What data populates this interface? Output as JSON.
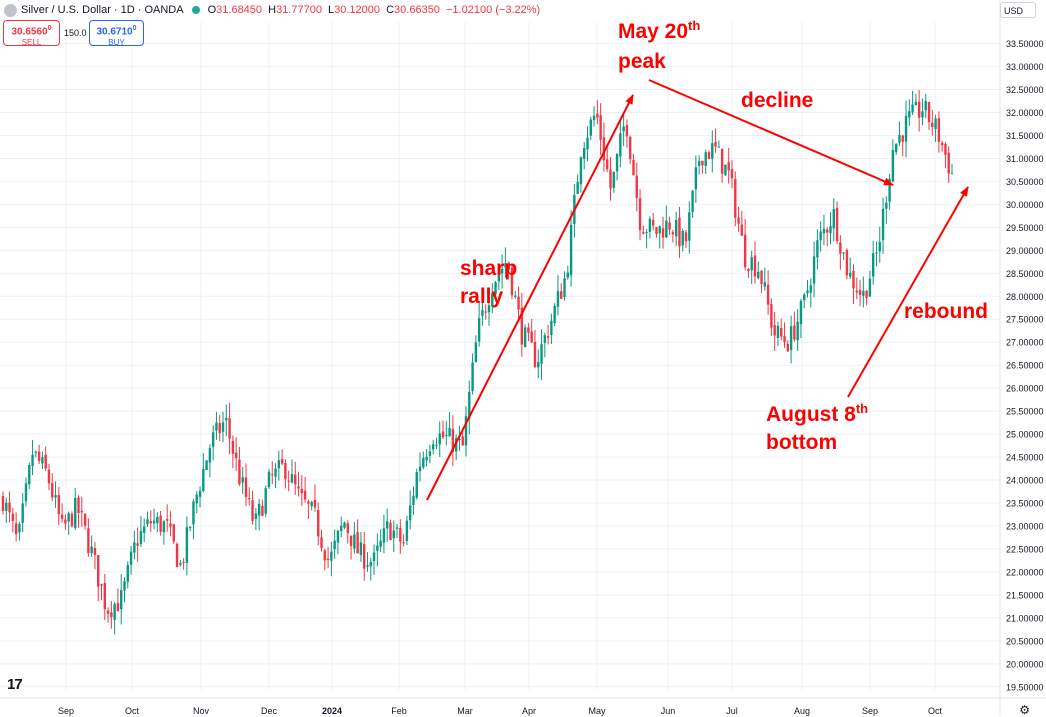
{
  "header": {
    "title": "Silver / U.S. Dollar · 1D · OANDA",
    "ohlc": [
      {
        "k": "O",
        "v": "31.68450"
      },
      {
        "k": "H",
        "v": "31.77700"
      },
      {
        "k": "L",
        "v": "30.12000"
      },
      {
        "k": "C",
        "v": "30.66350"
      }
    ],
    "change": "−1.02100 (−3.22%)"
  },
  "trade": {
    "sell_price": "30.6560",
    "sell_sup": "0",
    "sell_label": "SELL",
    "spread": "150.0",
    "buy_price": "30.6710",
    "buy_sup": "0",
    "buy_label": "BUY"
  },
  "currency": "USD",
  "chart_data": {
    "type": "candlestick",
    "title": "Silver / U.S. Dollar · 1D · OANDA",
    "x_labels": [
      "Sep",
      "Oct",
      "Nov",
      "Dec",
      "2024",
      "Feb",
      "Mar",
      "Apr",
      "May",
      "Jun",
      "Jul",
      "Aug",
      "Sep",
      "Oct"
    ],
    "y_ticks": [
      "19.50000",
      "20.00000",
      "20.50000",
      "21.00000",
      "21.50000",
      "22.00000",
      "22.50000",
      "23.00000",
      "23.50000",
      "24.00000",
      "24.50000",
      "25.00000",
      "25.50000",
      "26.00000",
      "26.50000",
      "27.00000",
      "27.50000",
      "28.00000",
      "28.50000",
      "29.00000",
      "29.50000",
      "30.00000",
      "30.50000",
      "31.00000",
      "31.50000",
      "32.00000",
      "32.50000",
      "33.00000",
      "33.50000"
    ],
    "ylim": [
      19.43,
      33.97
    ],
    "series_anchors": [
      {
        "date": "Aug 15",
        "close": 23.6
      },
      {
        "date": "Aug 25",
        "close": 22.6
      },
      {
        "date": "Aug 31",
        "close": 24.6
      },
      {
        "date": "Sep 5",
        "close": 24.1
      },
      {
        "date": "Sep 14",
        "close": 22.9
      },
      {
        "date": "Sep 21",
        "close": 23.4
      },
      {
        "date": "Sep 27",
        "close": 22.4
      },
      {
        "date": "Oct 3",
        "close": 21.2
      },
      {
        "date": "Oct 6",
        "close": 21.4
      },
      {
        "date": "Oct 16",
        "close": 22.7
      },
      {
        "date": "Oct 26",
        "close": 23.1
      },
      {
        "date": "Nov 6",
        "close": 23.0
      },
      {
        "date": "Nov 13",
        "close": 22.1
      },
      {
        "date": "Nov 20",
        "close": 23.6
      },
      {
        "date": "Nov 29",
        "close": 24.8
      },
      {
        "date": "Dec 4",
        "close": 25.3
      },
      {
        "date": "Dec 7",
        "close": 24.0
      },
      {
        "date": "Dec 13",
        "close": 23.0
      },
      {
        "date": "Dec 20",
        "close": 24.0
      },
      {
        "date": "Dec 28",
        "close": 24.3
      },
      {
        "date": "Jan 3",
        "close": 23.6
      },
      {
        "date": "Jan 10",
        "close": 23.2
      },
      {
        "date": "Jan 22",
        "close": 22.2
      },
      {
        "date": "Jan 29",
        "close": 23.1
      },
      {
        "date": "Feb 6",
        "close": 22.4
      },
      {
        "date": "Feb 13",
        "close": 22.2
      },
      {
        "date": "Feb 20",
        "close": 23.0
      },
      {
        "date": "Feb 28",
        "close": 22.6
      },
      {
        "date": "Mar 7",
        "close": 24.3
      },
      {
        "date": "Mar 14",
        "close": 25.0
      },
      {
        "date": "Mar 21",
        "close": 24.9
      },
      {
        "date": "Mar 28",
        "close": 24.7
      },
      {
        "date": "Apr 5",
        "close": 27.2
      },
      {
        "date": "Apr 12",
        "close": 28.3
      },
      {
        "date": "Apr 18",
        "close": 28.8
      },
      {
        "date": "Apr 24",
        "close": 27.2
      },
      {
        "date": "May 1",
        "close": 26.6
      },
      {
        "date": "May 8",
        "close": 27.5
      },
      {
        "date": "May 13",
        "close": 28.5
      },
      {
        "date": "May 17",
        "close": 31.3
      },
      {
        "date": "May 20",
        "close": 32.0
      },
      {
        "date": "May 23",
        "close": 30.3
      },
      {
        "date": "May 29",
        "close": 31.9
      },
      {
        "date": "Jun 7",
        "close": 29.6
      },
      {
        "date": "Jun 14",
        "close": 29.4
      },
      {
        "date": "Jun 21",
        "close": 29.6
      },
      {
        "date": "Jun 28",
        "close": 29.1
      },
      {
        "date": "Jul 5",
        "close": 31.1
      },
      {
        "date": "Jul 10",
        "close": 31.2
      },
      {
        "date": "Jul 17",
        "close": 30.6
      },
      {
        "date": "Jul 24",
        "close": 28.9
      },
      {
        "date": "Aug 1",
        "close": 28.6
      },
      {
        "date": "Aug 5",
        "close": 27.2
      },
      {
        "date": "Aug 8",
        "close": 27.0
      },
      {
        "date": "Aug 15",
        "close": 27.8
      },
      {
        "date": "Aug 22",
        "close": 29.2
      },
      {
        "date": "Aug 29",
        "close": 29.8
      },
      {
        "date": "Sep 6",
        "close": 28.5
      },
      {
        "date": "Sep 12",
        "close": 28.0
      },
      {
        "date": "Sep 17",
        "close": 29.0
      },
      {
        "date": "Sep 24",
        "close": 31.2
      },
      {
        "date": "Sep 30",
        "close": 31.8
      },
      {
        "date": "Oct 4",
        "close": 32.1
      },
      {
        "date": "Oct 8",
        "close": 31.6
      },
      {
        "date": "Oct 10",
        "close": 30.66
      }
    ],
    "annotations": [
      {
        "text": "May 20",
        "sup": "th",
        "text2": "peak"
      },
      {
        "text": "decline"
      },
      {
        "text": "sharp",
        "text2": "rally"
      },
      {
        "text": "rebound"
      },
      {
        "text": "August 8",
        "sup": "th",
        "text2": "bottom"
      }
    ],
    "grid": true,
    "annotation_color": "#ff0000",
    "up_color": "#089981",
    "down_color": "#f23645"
  }
}
